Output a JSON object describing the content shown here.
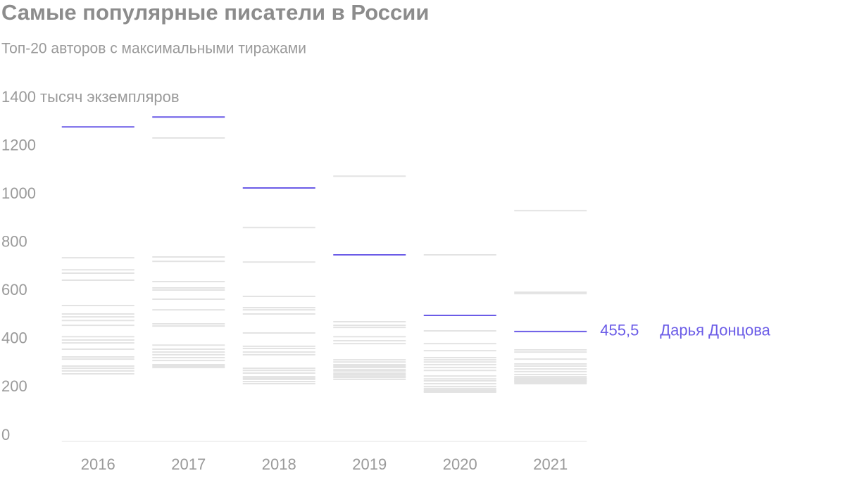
{
  "chart_data": {
    "type": "strip",
    "title": "Самые популярные писатели в России",
    "subtitle": "Топ-20 авторов с максимальными тиражами",
    "categories": [
      "2016",
      "2017",
      "2018",
      "2019",
      "2020",
      "2021"
    ],
    "series": [
      {
        "name": "Дарья Донцова",
        "color": "#6b5ce7",
        "values": [
          1303,
          1344,
          1050,
          773,
          522,
          455.5
        ],
        "value_labels": [
          null,
          null,
          null,
          null,
          null,
          "455,5"
        ]
      }
    ],
    "other_color": "#e3e3e3",
    "other_values": [
      [
        761,
        711,
        697,
        668,
        563,
        528,
        516,
        501,
        481,
        434,
        420,
        408,
        382,
        350,
        341,
        312,
        303,
        292,
        280
      ],
      [
        1257,
        764,
        746,
        662,
        636,
        627,
        589,
        545,
        487,
        478,
        399,
        382,
        370,
        359,
        347,
        335,
        318,
        312,
        306
      ],
      [
        886,
        743,
        601,
        554,
        545,
        528,
        449,
        394,
        385,
        370,
        359,
        303,
        294,
        283,
        268,
        262,
        257,
        248,
        239
      ],
      [
        1099,
        496,
        481,
        472,
        434,
        417,
        405,
        338,
        329,
        318,
        312,
        306,
        297,
        292,
        283,
        277,
        271,
        265,
        257
      ],
      [
        773,
        458,
        405,
        376,
        347,
        338,
        329,
        318,
        306,
        294,
        271,
        259,
        251,
        239,
        227,
        219,
        213,
        207,
        204
      ],
      [
        956,
        618,
        612,
        379,
        370,
        341,
        321,
        312,
        300,
        289,
        277,
        268,
        262,
        259,
        254,
        251,
        248,
        245,
        239
      ]
    ],
    "ylim": [
      0,
      1400
    ],
    "yticks": [
      0,
      200,
      400,
      600,
      800,
      1000,
      1200,
      {
        "value": 1400,
        "label": "1400 тысяч экземпляров"
      }
    ]
  }
}
